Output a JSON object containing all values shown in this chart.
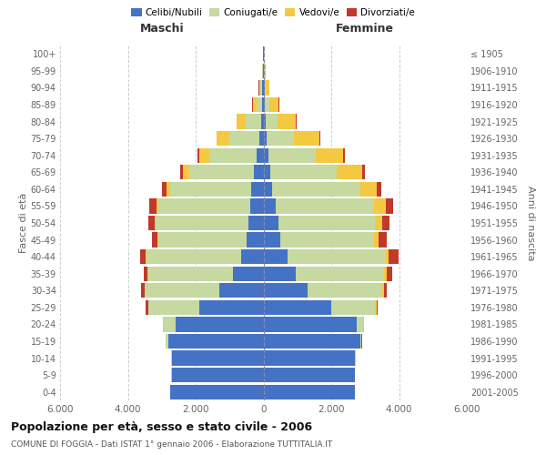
{
  "age_groups": [
    "0-4",
    "5-9",
    "10-14",
    "15-19",
    "20-24",
    "25-29",
    "30-34",
    "35-39",
    "40-44",
    "45-49",
    "50-54",
    "55-59",
    "60-64",
    "65-69",
    "70-74",
    "75-79",
    "80-84",
    "85-89",
    "90-94",
    "95-99",
    "100+"
  ],
  "birth_years": [
    "2001-2005",
    "1996-2000",
    "1991-1995",
    "1986-1990",
    "1981-1985",
    "1976-1980",
    "1971-1975",
    "1966-1970",
    "1961-1965",
    "1956-1960",
    "1951-1955",
    "1946-1950",
    "1941-1945",
    "1936-1940",
    "1931-1935",
    "1926-1930",
    "1921-1925",
    "1916-1920",
    "1911-1915",
    "1906-1910",
    "≤ 1905"
  ],
  "male_celibi": [
    2750,
    2700,
    2700,
    2800,
    2600,
    1900,
    1300,
    900,
    650,
    500,
    430,
    400,
    350,
    280,
    200,
    120,
    80,
    50,
    30,
    15,
    10
  ],
  "male_coniugati": [
    5,
    10,
    20,
    80,
    350,
    1500,
    2200,
    2500,
    2800,
    2600,
    2750,
    2700,
    2400,
    1900,
    1400,
    900,
    450,
    150,
    60,
    20,
    5
  ],
  "male_vedovi": [
    2,
    2,
    2,
    2,
    5,
    5,
    10,
    10,
    15,
    20,
    40,
    60,
    100,
    200,
    300,
    350,
    250,
    120,
    40,
    10,
    2
  ],
  "male_divorziati": [
    2,
    2,
    2,
    5,
    20,
    60,
    100,
    130,
    160,
    170,
    180,
    200,
    130,
    80,
    50,
    20,
    15,
    10,
    5,
    2,
    0
  ],
  "female_nubili": [
    2700,
    2700,
    2700,
    2850,
    2750,
    2000,
    1300,
    950,
    700,
    500,
    430,
    350,
    250,
    200,
    150,
    100,
    60,
    50,
    40,
    20,
    10
  ],
  "female_coniugate": [
    5,
    5,
    10,
    40,
    200,
    1300,
    2200,
    2600,
    2900,
    2750,
    2850,
    2900,
    2600,
    1950,
    1400,
    800,
    350,
    120,
    40,
    15,
    3
  ],
  "female_vedove": [
    2,
    2,
    2,
    5,
    10,
    30,
    50,
    80,
    100,
    150,
    230,
    350,
    500,
    750,
    800,
    750,
    550,
    280,
    100,
    30,
    5
  ],
  "female_divorziate": [
    2,
    2,
    2,
    5,
    10,
    40,
    100,
    180,
    280,
    230,
    210,
    230,
    130,
    100,
    60,
    30,
    20,
    10,
    5,
    2,
    0
  ],
  "color_celibi": "#4472c4",
  "color_coniugati": "#c5d9a0",
  "color_vedovi": "#f5c842",
  "color_divorziati": "#c0392b",
  "xlim": 6000,
  "title": "Popolazione per età, sesso e stato civile - 2006",
  "subtitle": "COMUNE DI FOGGIA - Dati ISTAT 1° gennaio 2006 - Elaborazione TUTTITALIA.IT",
  "xlabel_left": "Maschi",
  "xlabel_right": "Femmine",
  "ylabel_left": "Fasce di età",
  "ylabel_right": "Anni di nascita",
  "bg_color": "#ffffff",
  "grid_color": "#cccccc"
}
